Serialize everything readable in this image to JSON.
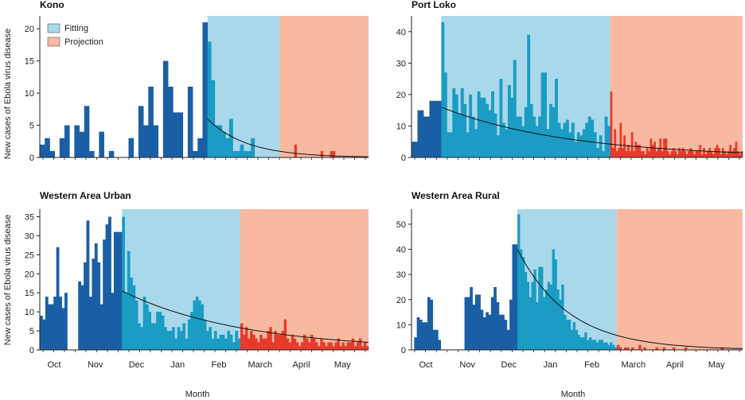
{
  "colors": {
    "fitting_bg": "#a8d8ea",
    "projection_bg": "#f8b9a0",
    "early_bar": "#1a5fa5",
    "fitting_bar": "#1a9cc4",
    "projection_bar": "#e83a2a",
    "curve": "#111111"
  },
  "legend": {
    "fitting": "Fitting",
    "projection": "Projection"
  },
  "xlabel": "Month",
  "ylabel": "New cases of Ebola virus disease",
  "chart_data": [
    {
      "type": "bar",
      "title": "Kono",
      "ylim": [
        0,
        22
      ],
      "yticks": [
        0,
        5,
        10,
        15,
        20
      ],
      "month_ticks": [],
      "fitting_range": [
        0.51,
        0.73
      ],
      "projection_range": [
        0.73,
        1.0
      ],
      "early_values": [
        2,
        3,
        1,
        0,
        3,
        5,
        0,
        5,
        4,
        8,
        1,
        0,
        4,
        0,
        1,
        0,
        0,
        0,
        3,
        0,
        8,
        5,
        11,
        5,
        0,
        15,
        11,
        7,
        7,
        0,
        11,
        1,
        3,
        21
      ],
      "fitting_values": [
        18,
        12,
        5,
        5,
        4,
        3,
        6,
        1,
        1,
        2,
        1,
        1,
        3,
        0,
        0,
        0,
        0,
        0,
        0,
        0
      ],
      "projection_values": [
        0,
        0,
        0,
        0,
        0,
        0,
        2,
        0,
        0,
        0,
        0,
        0,
        0,
        0,
        0,
        0,
        0,
        1,
        0,
        0,
        0,
        1,
        1,
        0,
        0,
        0,
        0,
        0,
        0,
        0,
        0,
        0,
        0,
        0,
        0,
        0,
        0
      ],
      "curve": {
        "start": 6,
        "end": 0.1
      }
    },
    {
      "type": "bar",
      "title": "Port Loko",
      "ylim": [
        0,
        45
      ],
      "yticks": [
        0,
        10,
        20,
        30,
        40
      ],
      "month_ticks": [],
      "fitting_range": [
        0.09,
        0.6
      ],
      "projection_range": [
        0.6,
        1.0
      ],
      "early_values": [
        5,
        15,
        13,
        18,
        18
      ],
      "fitting_values": [
        43,
        27,
        8,
        8,
        22,
        20,
        14,
        22,
        17,
        8,
        20,
        13,
        9,
        21,
        19,
        19,
        17,
        15,
        21,
        14,
        7,
        25,
        11,
        9,
        23,
        19,
        31,
        13,
        13,
        10,
        16,
        39,
        17,
        13,
        10,
        13,
        27,
        27,
        9,
        17,
        16,
        25,
        11,
        9,
        11,
        12,
        8,
        11,
        5,
        8,
        7,
        9,
        11,
        13,
        12,
        8,
        3,
        7,
        2,
        13,
        10
      ],
      "projection_values": [
        21,
        3,
        9,
        2,
        3,
        11,
        3,
        7,
        2,
        4,
        2,
        8,
        2,
        5,
        4,
        4,
        2,
        2,
        1,
        3,
        2,
        6,
        4,
        5,
        2,
        3,
        6,
        2,
        6,
        6,
        2,
        1,
        2,
        3,
        2,
        1,
        3,
        2,
        3,
        2,
        1,
        2,
        3,
        2,
        1,
        2,
        2,
        4,
        1,
        3,
        1,
        2,
        3,
        2,
        1,
        3,
        4,
        3,
        1,
        3,
        2,
        1,
        2,
        4,
        2,
        3,
        5,
        2,
        1,
        2
      ],
      "curve": {
        "start": 16,
        "end": 1.5
      }
    },
    {
      "type": "bar",
      "title": "Western Area Urban",
      "ylim": [
        0,
        37
      ],
      "yticks": [
        0,
        5,
        10,
        15,
        20,
        25,
        30,
        35
      ],
      "month_ticks": [
        "Oct",
        "Nov",
        "Dec",
        "Jan",
        "Feb",
        "March",
        "April",
        "May"
      ],
      "fitting_range": [
        0.25,
        0.61
      ],
      "projection_range": [
        0.61,
        1.0
      ],
      "early_values": [
        9,
        8,
        14,
        12,
        12,
        14,
        27,
        14,
        11,
        15,
        0,
        0,
        0,
        0,
        18,
        17,
        23,
        34,
        14,
        24,
        28,
        23,
        12,
        29,
        33,
        35,
        15,
        31,
        31,
        31
      ],
      "fitting_values": [
        35,
        15,
        26,
        19,
        17,
        13,
        7,
        6,
        14,
        12,
        10,
        7,
        7,
        10,
        10,
        9,
        6,
        5,
        5,
        6,
        3,
        6,
        5,
        7,
        3,
        8,
        10,
        13,
        14,
        13,
        12,
        8,
        5,
        6,
        3,
        5,
        3,
        4,
        4,
        3,
        5,
        4,
        2,
        5,
        3
      ],
      "projection_values": [
        7,
        4,
        6,
        3,
        5,
        4,
        3,
        2,
        4,
        3,
        3,
        5,
        6,
        2,
        5,
        4,
        4,
        5,
        8,
        3,
        2,
        4,
        3,
        2,
        1,
        2,
        4,
        3,
        2,
        4,
        3,
        2,
        1,
        3,
        2,
        1,
        2,
        2,
        1,
        2,
        3,
        1,
        2,
        1,
        2,
        2,
        3,
        1,
        2,
        3,
        1,
        2,
        1
      ],
      "curve": {
        "start": 15.5,
        "end": 2
      }
    },
    {
      "type": "bar",
      "title": "Western Area Rural",
      "ylim": [
        0,
        56
      ],
      "yticks": [
        0,
        10,
        20,
        30,
        40,
        50
      ],
      "month_ticks": [
        "Oct",
        "Nov",
        "Dec",
        "Jan",
        "Feb",
        "March",
        "April",
        "May"
      ],
      "fitting_range": [
        0.32,
        0.62
      ],
      "projection_range": [
        0.62,
        1.0
      ],
      "early_values": [
        0,
        5,
        13,
        12,
        11,
        11,
        21,
        20,
        8,
        8,
        4,
        0,
        0,
        0,
        0,
        0,
        0,
        0,
        0,
        0,
        21,
        21,
        25,
        18,
        22,
        22,
        16,
        13,
        15,
        14,
        21,
        25,
        19,
        14,
        14,
        12,
        8,
        20,
        42,
        42
      ],
      "fitting_values": [
        54,
        40,
        37,
        31,
        27,
        21,
        27,
        32,
        19,
        33,
        33,
        21,
        24,
        27,
        26,
        40,
        36,
        24,
        20,
        26,
        14,
        12,
        12,
        8,
        11,
        8,
        6,
        5,
        5,
        7,
        4,
        5,
        4,
        4,
        3,
        4,
        4,
        3,
        3,
        2,
        3,
        2,
        1
      ],
      "projection_values": [
        2,
        1,
        0,
        1,
        1,
        0,
        1,
        0,
        0,
        2,
        0,
        1,
        0,
        0,
        0,
        0,
        1,
        0,
        0,
        1,
        0,
        0,
        0,
        1,
        0,
        0,
        0,
        0,
        1,
        0,
        0,
        0,
        0,
        0,
        0,
        0,
        0,
        0,
        0,
        0,
        0,
        0,
        0,
        1,
        0,
        0,
        0,
        0,
        0,
        0,
        0,
        0
      ],
      "curve": {
        "start": 40,
        "end": 0.5
      }
    }
  ]
}
